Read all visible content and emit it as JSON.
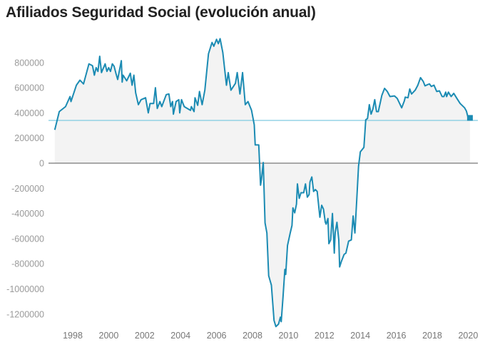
{
  "chart_data": {
    "type": "area",
    "title": "Afiliados Seguridad Social (evolución anual)",
    "xlabel": "",
    "ylabel": "",
    "xlim": [
      1996.65,
      2020.54
    ],
    "ylim": [
      -1300000,
      1000000
    ],
    "x_ticks": [
      "1998",
      "2000",
      "2002",
      "2004",
      "2006",
      "2008",
      "2010",
      "2012",
      "2014",
      "2016",
      "2018",
      "2020"
    ],
    "y_ticks": [
      "800000",
      "600000",
      "400000",
      "200000",
      "0",
      "-200000",
      "-400000",
      "-600000",
      "-800000",
      "-1000000",
      "-1200000"
    ],
    "reference_line": 340000,
    "last_point_marker": true,
    "colors": {
      "line": "#1b8bb3",
      "fill": "#f3f3f3",
      "reference": "#7fcbe0",
      "zero": "#777777"
    },
    "series": [
      {
        "name": "Afiliados",
        "points": [
          [
            1997.0,
            265000
          ],
          [
            1997.25,
            410000
          ],
          [
            1997.6,
            450000
          ],
          [
            1997.85,
            530000
          ],
          [
            1997.9,
            490000
          ],
          [
            1998.2,
            620000
          ],
          [
            1998.4,
            660000
          ],
          [
            1998.6,
            630000
          ],
          [
            1998.9,
            790000
          ],
          [
            1999.1,
            775000
          ],
          [
            1999.2,
            700000
          ],
          [
            1999.3,
            760000
          ],
          [
            1999.4,
            730000
          ],
          [
            1999.5,
            850000
          ],
          [
            1999.6,
            720000
          ],
          [
            1999.8,
            790000
          ],
          [
            1999.9,
            730000
          ],
          [
            2000.0,
            760000
          ],
          [
            2000.1,
            730000
          ],
          [
            2000.2,
            790000
          ],
          [
            2000.3,
            770000
          ],
          [
            2000.4,
            715000
          ],
          [
            2000.5,
            665000
          ],
          [
            2000.7,
            815000
          ],
          [
            2000.75,
            645000
          ],
          [
            2000.8,
            700000
          ],
          [
            2001.0,
            655000
          ],
          [
            2001.2,
            715000
          ],
          [
            2001.3,
            620000
          ],
          [
            2001.4,
            700000
          ],
          [
            2001.5,
            560000
          ],
          [
            2001.65,
            465000
          ],
          [
            2001.8,
            505000
          ],
          [
            2002.05,
            520000
          ],
          [
            2002.2,
            400000
          ],
          [
            2002.3,
            475000
          ],
          [
            2002.5,
            475000
          ],
          [
            2002.6,
            600000
          ],
          [
            2002.7,
            435000
          ],
          [
            2002.85,
            490000
          ],
          [
            2002.95,
            450000
          ],
          [
            2003.2,
            545000
          ],
          [
            2003.35,
            550000
          ],
          [
            2003.45,
            450000
          ],
          [
            2003.55,
            490000
          ],
          [
            2003.6,
            390000
          ],
          [
            2003.75,
            490000
          ],
          [
            2003.9,
            505000
          ],
          [
            2003.95,
            400000
          ],
          [
            2004.05,
            505000
          ],
          [
            2004.2,
            450000
          ],
          [
            2004.55,
            420000
          ],
          [
            2004.6,
            450000
          ],
          [
            2004.75,
            410000
          ],
          [
            2004.8,
            520000
          ],
          [
            2004.95,
            460000
          ],
          [
            2005.05,
            570000
          ],
          [
            2005.2,
            465000
          ],
          [
            2005.35,
            580000
          ],
          [
            2005.55,
            870000
          ],
          [
            2005.75,
            960000
          ],
          [
            2005.85,
            930000
          ],
          [
            2006.0,
            985000
          ],
          [
            2006.1,
            950000
          ],
          [
            2006.2,
            990000
          ],
          [
            2006.35,
            880000
          ],
          [
            2006.55,
            620000
          ],
          [
            2006.65,
            720000
          ],
          [
            2006.8,
            580000
          ],
          [
            2007.05,
            635000
          ],
          [
            2007.15,
            720000
          ],
          [
            2007.3,
            550000
          ],
          [
            2007.45,
            720000
          ],
          [
            2007.6,
            465000
          ],
          [
            2007.75,
            490000
          ],
          [
            2007.95,
            420000
          ],
          [
            2008.1,
            305000
          ],
          [
            2008.15,
            145000
          ],
          [
            2008.35,
            145000
          ],
          [
            2008.45,
            -175000
          ],
          [
            2008.5,
            -130000
          ],
          [
            2008.6,
            5000
          ],
          [
            2008.7,
            -475000
          ],
          [
            2008.8,
            -555000
          ],
          [
            2008.9,
            -895000
          ],
          [
            2009.05,
            -970000
          ],
          [
            2009.2,
            -1250000
          ],
          [
            2009.3,
            -1300000
          ],
          [
            2009.45,
            -1280000
          ],
          [
            2009.55,
            -1225000
          ],
          [
            2009.6,
            -1260000
          ],
          [
            2009.7,
            -1065000
          ],
          [
            2009.8,
            -845000
          ],
          [
            2009.85,
            -885000
          ],
          [
            2009.95,
            -655000
          ],
          [
            2010.1,
            -555000
          ],
          [
            2010.2,
            -495000
          ],
          [
            2010.25,
            -355000
          ],
          [
            2010.35,
            -395000
          ],
          [
            2010.45,
            -325000
          ],
          [
            2010.5,
            -165000
          ],
          [
            2010.6,
            -280000
          ],
          [
            2010.7,
            -235000
          ],
          [
            2010.85,
            -235000
          ],
          [
            2010.95,
            -165000
          ],
          [
            2011.05,
            -270000
          ],
          [
            2011.15,
            -250000
          ],
          [
            2011.2,
            -150000
          ],
          [
            2011.3,
            -110000
          ],
          [
            2011.4,
            -225000
          ],
          [
            2011.5,
            -210000
          ],
          [
            2011.6,
            -225000
          ],
          [
            2011.75,
            -430000
          ],
          [
            2011.85,
            -335000
          ],
          [
            2011.95,
            -365000
          ],
          [
            2012.05,
            -470000
          ],
          [
            2012.1,
            -485000
          ],
          [
            2012.2,
            -440000
          ],
          [
            2012.25,
            -640000
          ],
          [
            2012.35,
            -610000
          ],
          [
            2012.45,
            -400000
          ],
          [
            2012.55,
            -715000
          ],
          [
            2012.6,
            -555000
          ],
          [
            2012.7,
            -470000
          ],
          [
            2012.8,
            -610000
          ],
          [
            2012.85,
            -825000
          ],
          [
            2012.95,
            -780000
          ],
          [
            2013.1,
            -725000
          ],
          [
            2013.2,
            -715000
          ],
          [
            2013.35,
            -620000
          ],
          [
            2013.5,
            -610000
          ],
          [
            2013.6,
            -420000
          ],
          [
            2013.7,
            -555000
          ],
          [
            2013.8,
            -290000
          ],
          [
            2013.9,
            -25000
          ],
          [
            2014.0,
            90000
          ],
          [
            2014.2,
            125000
          ],
          [
            2014.3,
            345000
          ],
          [
            2014.4,
            355000
          ],
          [
            2014.5,
            465000
          ],
          [
            2014.6,
            390000
          ],
          [
            2014.7,
            430000
          ],
          [
            2014.8,
            505000
          ],
          [
            2014.9,
            410000
          ],
          [
            2015.0,
            410000
          ],
          [
            2015.2,
            540000
          ],
          [
            2015.35,
            595000
          ],
          [
            2015.5,
            570000
          ],
          [
            2015.65,
            530000
          ],
          [
            2015.9,
            535000
          ],
          [
            2016.05,
            515000
          ],
          [
            2016.3,
            440000
          ],
          [
            2016.45,
            495000
          ],
          [
            2016.5,
            525000
          ],
          [
            2016.65,
            520000
          ],
          [
            2016.75,
            590000
          ],
          [
            2016.85,
            550000
          ],
          [
            2017.05,
            580000
          ],
          [
            2017.2,
            620000
          ],
          [
            2017.35,
            680000
          ],
          [
            2017.5,
            650000
          ],
          [
            2017.6,
            615000
          ],
          [
            2017.75,
            625000
          ],
          [
            2017.85,
            630000
          ],
          [
            2017.95,
            610000
          ],
          [
            2018.1,
            620000
          ],
          [
            2018.25,
            570000
          ],
          [
            2018.4,
            575000
          ],
          [
            2018.55,
            530000
          ],
          [
            2018.65,
            530000
          ],
          [
            2018.75,
            565000
          ],
          [
            2018.8,
            530000
          ],
          [
            2018.9,
            565000
          ],
          [
            2019.05,
            530000
          ],
          [
            2019.2,
            555000
          ],
          [
            2019.35,
            520000
          ],
          [
            2019.55,
            475000
          ],
          [
            2019.8,
            440000
          ],
          [
            2019.9,
            415000
          ],
          [
            2020.0,
            360000
          ],
          [
            2020.1,
            360000
          ]
        ]
      }
    ]
  }
}
